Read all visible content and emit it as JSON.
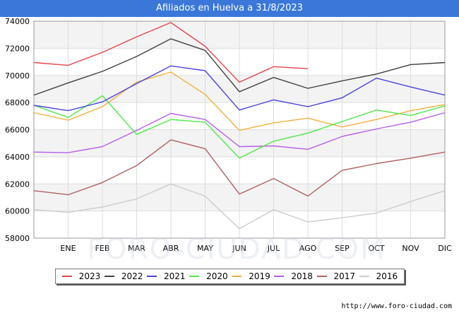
{
  "title": "Afiliados en Huelva a 31/8/2023",
  "source_url": "http://www.foro-ciudad.com",
  "watermark": "FORO-CIUDAD.COM",
  "chart_data": {
    "type": "line",
    "title": "Afiliados en Huelva a 31/8/2023",
    "xlabel": "",
    "ylabel": "",
    "ylim": [
      58000,
      74000
    ],
    "y_ticks": [
      58000,
      60000,
      62000,
      64000,
      66000,
      68000,
      70000,
      72000,
      74000
    ],
    "y_tick_labels": [
      "58000",
      "60000",
      "62000",
      "64000",
      "66000",
      "68000",
      "70000",
      "72000",
      "74000"
    ],
    "categories": [
      "",
      "ENE",
      "FEB",
      "MAR",
      "ABR",
      "MAY",
      "JUN",
      "JUL",
      "AGO",
      "SEP",
      "OCT",
      "NOV",
      "DIC"
    ],
    "legend_position": "bottom",
    "series": [
      {
        "name": "2023",
        "color": "#e8454a",
        "values": [
          70950,
          70750,
          71700,
          72850,
          73900,
          72150,
          69500,
          70650,
          70500,
          null,
          null,
          null,
          null
        ]
      },
      {
        "name": "2022",
        "color": "#404040",
        "values": [
          68550,
          69450,
          70300,
          71400,
          72700,
          71850,
          68800,
          69850,
          69050,
          69600,
          70100,
          70800,
          70950
        ]
      },
      {
        "name": "2021",
        "color": "#4a43e0",
        "values": [
          67800,
          67400,
          68050,
          69400,
          70700,
          70350,
          67450,
          68200,
          67700,
          68350,
          69800,
          69150,
          68550
        ]
      },
      {
        "name": "2020",
        "color": "#4ee84a",
        "values": [
          67800,
          66900,
          68500,
          65650,
          66750,
          66550,
          63900,
          65150,
          65750,
          66600,
          67450,
          67050,
          67750
        ]
      },
      {
        "name": "2019",
        "color": "#f0b040",
        "values": [
          67250,
          66700,
          67700,
          69500,
          70250,
          68600,
          65950,
          66500,
          66850,
          66200,
          66750,
          67400,
          67850
        ]
      },
      {
        "name": "2018",
        "color": "#b55ee8",
        "values": [
          64350,
          64300,
          64750,
          65950,
          67200,
          66750,
          64750,
          64800,
          64550,
          65500,
          66050,
          66550,
          67250
        ]
      },
      {
        "name": "2017",
        "color": "#b06060",
        "values": [
          61500,
          61200,
          62100,
          63350,
          65250,
          64600,
          61250,
          62400,
          61100,
          63000,
          63500,
          63900,
          64350
        ]
      },
      {
        "name": "2016",
        "color": "#cccccc",
        "values": [
          60100,
          59900,
          60300,
          60900,
          62000,
          61100,
          58700,
          60100,
          59200,
          59500,
          59850,
          60700,
          61500
        ]
      }
    ]
  }
}
